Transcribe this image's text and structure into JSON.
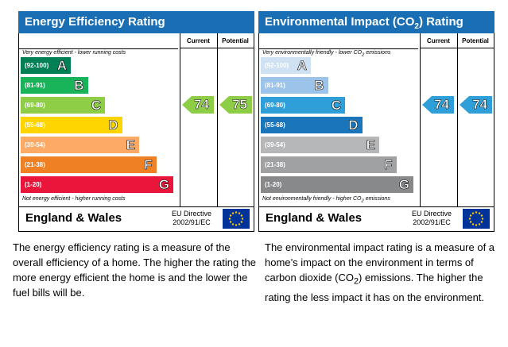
{
  "energy": {
    "title": "Energy Efficiency Rating",
    "header_color": "#1a6fb4",
    "col_current": "Current",
    "col_potential": "Potential",
    "top_note": "Very energy efficient - lower running costs",
    "bottom_note": "Not energy efficient - higher running costs",
    "bands": [
      {
        "range": "(92-100)",
        "letter": "A",
        "color": "#008054"
      },
      {
        "range": "(81-91)",
        "letter": "B",
        "color": "#19b459"
      },
      {
        "range": "(69-80)",
        "letter": "C",
        "color": "#8dce46"
      },
      {
        "range": "(55-68)",
        "letter": "D",
        "color": "#ffd500"
      },
      {
        "range": "(39-54)",
        "letter": "E",
        "color": "#fcaa65"
      },
      {
        "range": "(21-38)",
        "letter": "F",
        "color": "#ef8023"
      },
      {
        "range": "(1-20)",
        "letter": "G",
        "color": "#e9153b"
      }
    ],
    "current": "74",
    "current_band": 2,
    "current_color": "#8dce46",
    "potential": "75",
    "potential_band": 2,
    "potential_color": "#8dce46",
    "country": "England & Wales",
    "directive_line1": "EU Directive",
    "directive_line2": "2002/91/EC",
    "description": "The energy efficiency rating is a measure of the overall efficiency of a home. The higher the rating the more energy efficient the home is and the lower the fuel bills will be."
  },
  "environment": {
    "title_pre": "Environmental Impact (CO",
    "title_sub": "2",
    "title_post": ") Rating",
    "header_color": "#1a6fb4",
    "col_current": "Current",
    "col_potential": "Potential",
    "top_note_pre": "Very environmentally friendly - lower CO",
    "top_note_sub": "2",
    "top_note_post": " emissions",
    "bottom_note_pre": "Not environmentally friendly - higher CO",
    "bottom_note_sub": "2",
    "bottom_note_post": " emissions",
    "bands": [
      {
        "range": "(92-100)",
        "letter": "A",
        "color": "#cfe2f3"
      },
      {
        "range": "(81-91)",
        "letter": "B",
        "color": "#9cc3ea"
      },
      {
        "range": "(69-80)",
        "letter": "C",
        "color": "#2e9fd9"
      },
      {
        "range": "(55-68)",
        "letter": "D",
        "color": "#1b75bb"
      },
      {
        "range": "(39-54)",
        "letter": "E",
        "color": "#b6b7b9"
      },
      {
        "range": "(21-38)",
        "letter": "F",
        "color": "#a0a1a3"
      },
      {
        "range": "(1-20)",
        "letter": "G",
        "color": "#88898b"
      }
    ],
    "current": "74",
    "current_band": 2,
    "current_color": "#2e9fd9",
    "potential": "74",
    "potential_band": 2,
    "potential_color": "#2e9fd9",
    "country": "England & Wales",
    "directive_line1": "EU Directive",
    "directive_line2": "2002/91/EC",
    "description_pre": "The environmental impact rating is a measure of a home’s impact on the environment in terms of carbon dioxide (CO",
    "description_sub": "2",
    "description_post": ") emissions. The higher the rating the less impact it has on the environment."
  }
}
